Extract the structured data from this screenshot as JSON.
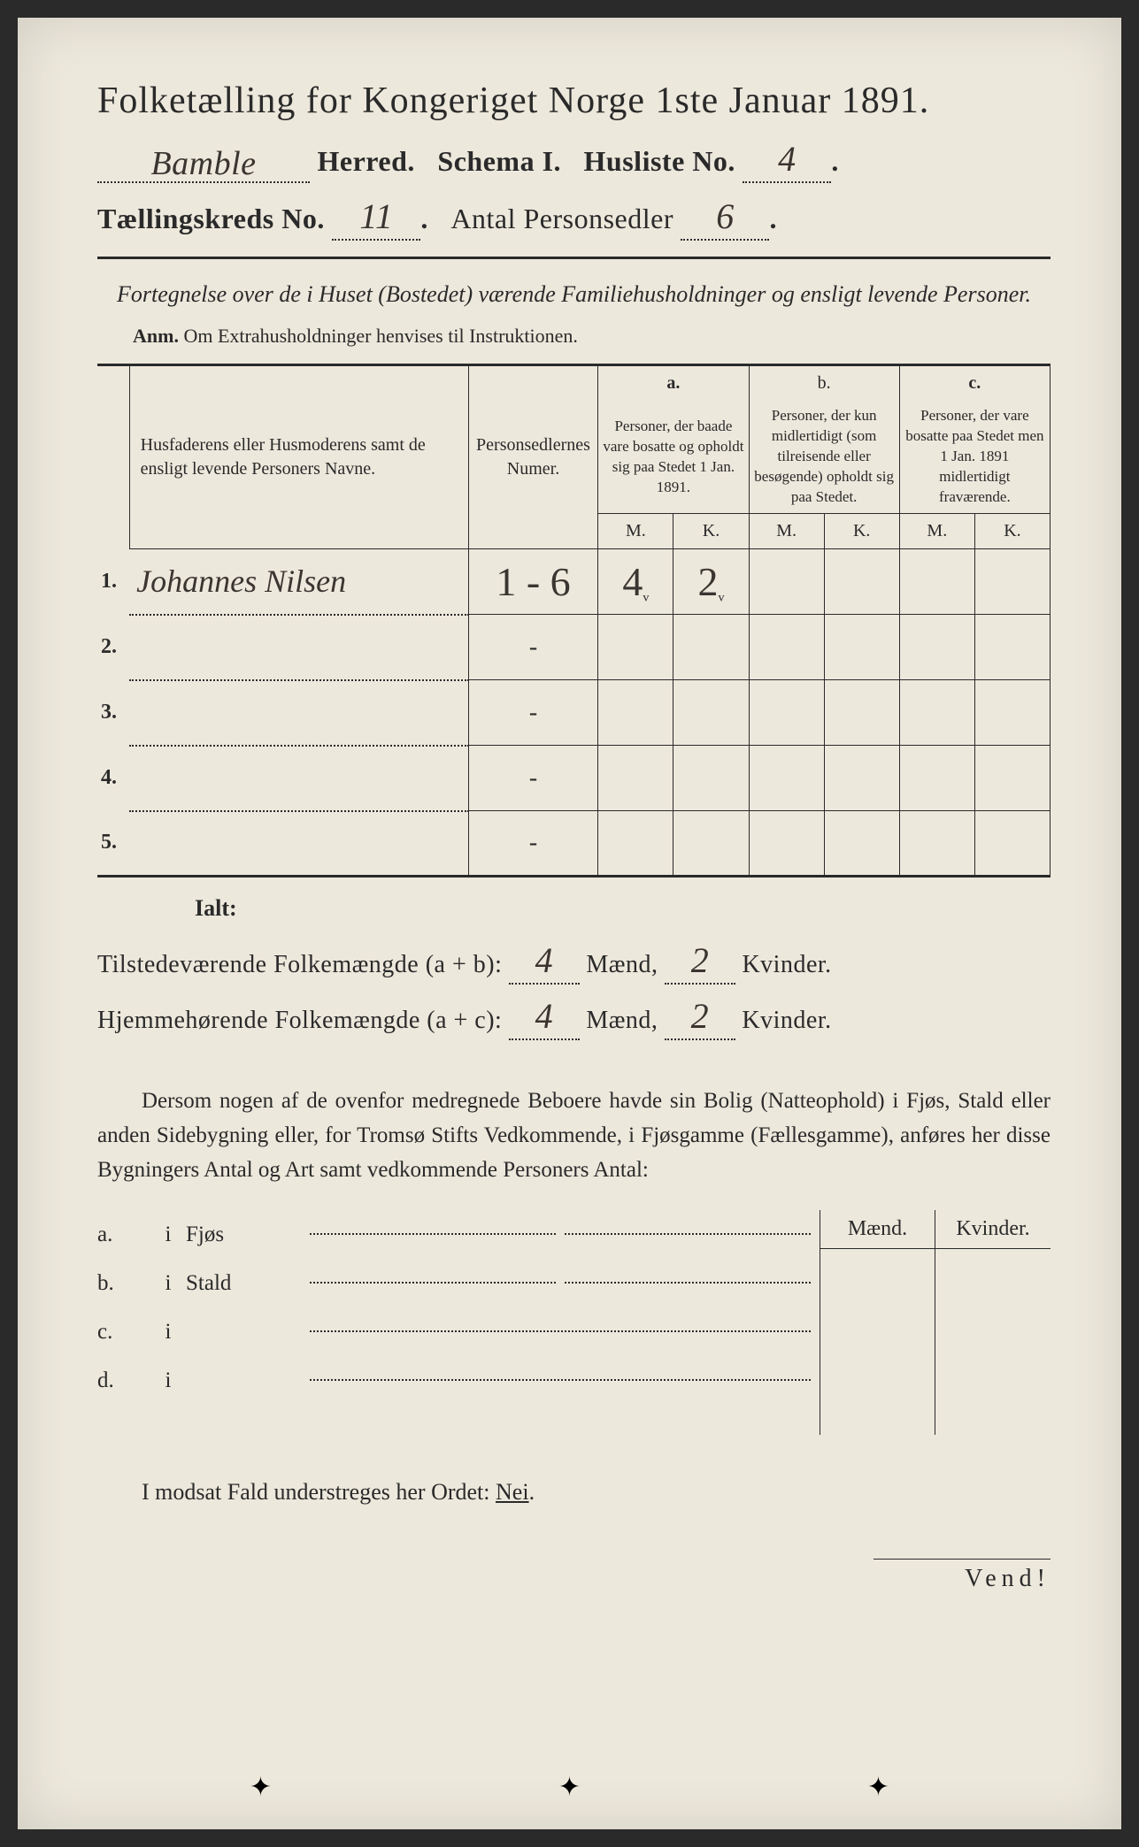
{
  "header": {
    "title": "Folketælling for Kongeriget Norge 1ste Januar 1891.",
    "herred_value": "Bamble",
    "herred_label": "Herred.",
    "schema_label": "Schema I.",
    "husliste_label": "Husliste No.",
    "husliste_value": "4",
    "kreds_label": "Tællingskreds No.",
    "kreds_value": "11",
    "personsedler_label": "Antal Personsedler",
    "personsedler_value": "6"
  },
  "intro": {
    "text": "Fortegnelse over de i Huset (Bostedet) værende Familiehusholdninger og ensligt levende Personer.",
    "anm_prefix": "Anm.",
    "anm_text": "Om Extrahusholdninger henvises til Instruktionen."
  },
  "columns": {
    "name": "Husfaderens eller Husmoderens samt de ensligt levende Personers Navne.",
    "numer": "Personsedlernes Numer.",
    "a_label": "a.",
    "a_text": "Personer, der baade vare bosatte og opholdt sig paa Stedet 1 Jan. 1891.",
    "b_label": "b.",
    "b_text": "Personer, der kun midlertidigt (som tilreisende eller besøgende) opholdt sig paa Stedet.",
    "c_label": "c.",
    "c_text": "Personer, der vare bosatte paa Stedet men 1 Jan. 1891 midlertidigt fraværende.",
    "m": "M.",
    "k": "K."
  },
  "rows": [
    {
      "n": "1.",
      "name": "Johannes Nilsen",
      "numer": "1 - 6",
      "a_m": "4",
      "a_k": "2",
      "b_m": "",
      "b_k": "",
      "c_m": "",
      "c_k": ""
    },
    {
      "n": "2.",
      "name": "",
      "numer": "-",
      "a_m": "",
      "a_k": "",
      "b_m": "",
      "b_k": "",
      "c_m": "",
      "c_k": ""
    },
    {
      "n": "3.",
      "name": "",
      "numer": "-",
      "a_m": "",
      "a_k": "",
      "b_m": "",
      "b_k": "",
      "c_m": "",
      "c_k": ""
    },
    {
      "n": "4.",
      "name": "",
      "numer": "-",
      "a_m": "",
      "a_k": "",
      "b_m": "",
      "b_k": "",
      "c_m": "",
      "c_k": ""
    },
    {
      "n": "5.",
      "name": "",
      "numer": "-",
      "a_m": "",
      "a_k": "",
      "b_m": "",
      "b_k": "",
      "c_m": "",
      "c_k": ""
    }
  ],
  "ialt": "Ialt:",
  "sums": {
    "tilstede_label": "Tilstedeværende Folkemængde (a + b):",
    "hjemme_label": "Hjemmehørende Folkemængde (a + c):",
    "maend_label": "Mænd,",
    "kvinder_label": "Kvinder.",
    "tilstede_m": "4",
    "tilstede_k": "2",
    "hjemme_m": "4",
    "hjemme_k": "2"
  },
  "para": "Dersom nogen af de ovenfor medregnede Beboere havde sin Bolig (Natteophold) i Fjøs, Stald eller anden Sidebygning eller, for Tromsø Stifts Vedkommende, i Fjøsgamme (Fællesgamme), anføres her disse Bygningers Antal og Art samt vedkommende Personers Antal:",
  "abcd": {
    "a": {
      "lbl": "a.",
      "i": "i",
      "what": "Fjøs"
    },
    "b": {
      "lbl": "b.",
      "i": "i",
      "what": "Stald"
    },
    "c": {
      "lbl": "c.",
      "i": "i",
      "what": ""
    },
    "d": {
      "lbl": "d.",
      "i": "i",
      "what": ""
    }
  },
  "mk": {
    "maend": "Mænd.",
    "kvinder": "Kvinder."
  },
  "modsat": "I modsat Fald understreges her Ordet: Nei.",
  "vend": "Vend!"
}
